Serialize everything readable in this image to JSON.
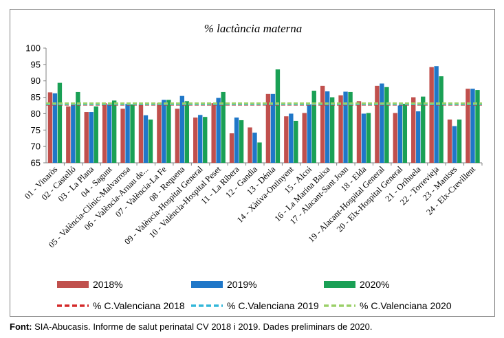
{
  "chart_data": {
    "type": "bar",
    "title": "% lactància materna",
    "xlabel": "",
    "ylabel": "",
    "ylim": [
      65,
      100
    ],
    "yticks": [
      65,
      70,
      75,
      80,
      85,
      90,
      95,
      100
    ],
    "grid": false,
    "legend_position": "bottom",
    "categories": [
      "01 - Vinaròs",
      "02 - Castelló",
      "03 - La Plana",
      "04 - Sagunt",
      "05 - València-Clínic-Malvarrosa",
      "06 - València-Arnau de...",
      "07 - València-La Fe",
      "08 - Requena",
      "09 - València-Hospital General",
      "10 - València-Hospital Peset",
      "11 - La Ribera",
      "12 - Gandia",
      "13 - Dénia",
      "14 - Xàtiva-Ontinyent",
      "15 - Alcoi",
      "16 - La Marina Baixa",
      "17 - Alacant-Sant Joan",
      "18 - Elda",
      "19 - Alacant-Hospital General",
      "20 - Elx-Hospital General",
      "21 - Orihuela",
      "22 - Torrevieja",
      "23 - Manises",
      "24 - Elx-Crevillent"
    ],
    "series": [
      {
        "name": "2018%",
        "color": "#c0504d",
        "values": [
          86.5,
          82.2,
          80.5,
          83.2,
          81.5,
          82.8,
          83.2,
          81.5,
          78.8,
          83.2,
          74.0,
          75.8,
          86.0,
          79.2,
          80.2,
          88.5,
          85.6,
          83.8,
          88.5,
          80.2,
          85.0,
          94.2,
          78.2,
          87.6
        ]
      },
      {
        "name": "2019%",
        "color": "#1f77c8",
        "values": [
          86.2,
          83.0,
          80.5,
          82.8,
          83.0,
          79.5,
          84.2,
          85.4,
          79.6,
          84.8,
          78.8,
          74.2,
          86.0,
          80.0,
          82.8,
          86.8,
          86.7,
          80.0,
          89.2,
          82.5,
          80.7,
          94.5,
          76.2,
          87.6
        ]
      },
      {
        "name": "2020%",
        "color": "#1aa055",
        "values": [
          89.4,
          86.6,
          82.2,
          84.0,
          82.8,
          78.2,
          84.2,
          83.8,
          79.0,
          86.6,
          78.0,
          71.2,
          93.5,
          77.8,
          87.0,
          85.0,
          86.6,
          80.2,
          88.1,
          83.0,
          85.2,
          91.4,
          78.2,
          87.2
        ]
      }
    ],
    "reference_lines": [
      {
        "name": "% C.Valenciana 2018",
        "value": 82.8,
        "color": "#d42a2a"
      },
      {
        "name": "% C.Valenciana 2019",
        "value": 82.9,
        "color": "#33b7d9"
      },
      {
        "name": "% C.Valenciana 2020",
        "value": 83.1,
        "color": "#9bd068"
      }
    ]
  },
  "source": {
    "label": "Font:",
    "text": " SIA-Abucasis. Informe de salut perinatal CV 2018 i 2019. Dades preliminars de 2020."
  }
}
